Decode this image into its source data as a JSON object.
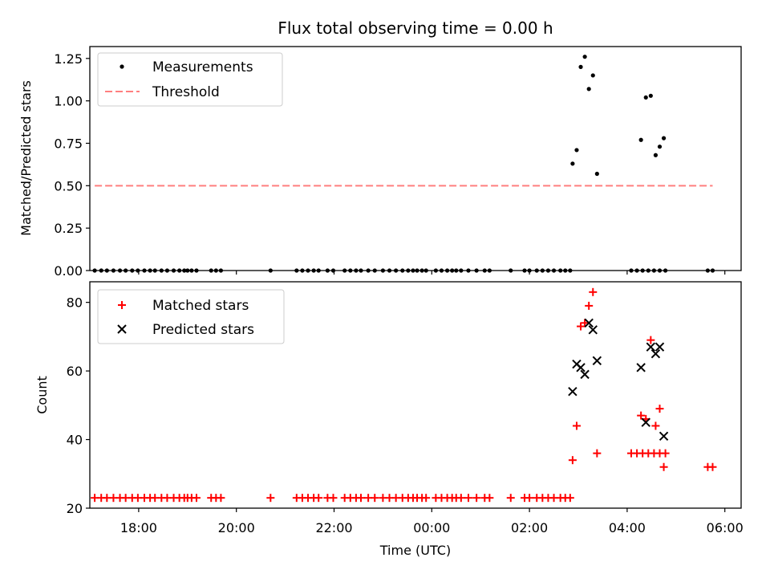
{
  "chart_data": [
    {
      "type": "scatter",
      "title": "Flux total observing time = 0.00 h",
      "xlabel": "",
      "ylabel": "Matched/Predicted stars",
      "xlim": [
        "17:00",
        "30:20"
      ],
      "ylim": [
        0,
        1.32
      ],
      "yticks": [
        "0.00",
        "0.25",
        "0.50",
        "0.75",
        "1.00",
        "1.25"
      ],
      "grid": false,
      "legend_position": "top-left",
      "legend": [
        "Measurements",
        "Threshold"
      ],
      "colors": {
        "measurements": "#000000",
        "threshold": "#ff7f7f"
      },
      "series": [
        {
          "name": "Measurements",
          "marker": "dot",
          "points": [
            [
              "17:06",
              0
            ],
            [
              "17:14",
              0
            ],
            [
              "17:21",
              0
            ],
            [
              "17:29",
              0
            ],
            [
              "17:37",
              0
            ],
            [
              "17:44",
              0
            ],
            [
              "17:52",
              0
            ],
            [
              "17:59",
              0
            ],
            [
              "18:07",
              0
            ],
            [
              "18:14",
              0
            ],
            [
              "18:20",
              0
            ],
            [
              "18:28",
              0
            ],
            [
              "18:35",
              0
            ],
            [
              "18:43",
              0
            ],
            [
              "18:50",
              0
            ],
            [
              "18:56",
              0
            ],
            [
              "19:00",
              0
            ],
            [
              "19:05",
              0
            ],
            [
              "19:11",
              0
            ],
            [
              "19:29",
              0
            ],
            [
              "19:35",
              0
            ],
            [
              "19:41",
              0
            ],
            [
              "20:42",
              0
            ],
            [
              "21:14",
              0
            ],
            [
              "21:21",
              0
            ],
            [
              "21:28",
              0
            ],
            [
              "21:35",
              0
            ],
            [
              "21:41",
              0
            ],
            [
              "21:52",
              0
            ],
            [
              "21:59",
              0
            ],
            [
              "22:13",
              0
            ],
            [
              "22:20",
              0
            ],
            [
              "22:27",
              0
            ],
            [
              "22:33",
              0
            ],
            [
              "22:42",
              0
            ],
            [
              "22:50",
              0
            ],
            [
              "23:00",
              0
            ],
            [
              "23:08",
              0
            ],
            [
              "23:16",
              0
            ],
            [
              "23:24",
              0
            ],
            [
              "23:31",
              0
            ],
            [
              "23:37",
              0
            ],
            [
              "23:42",
              0
            ],
            [
              "23:48",
              0
            ],
            [
              "23:53",
              0
            ],
            [
              "24:05",
              0
            ],
            [
              "24:12",
              0
            ],
            [
              "24:19",
              0
            ],
            [
              "24:25",
              0
            ],
            [
              "24:30",
              0
            ],
            [
              "24:36",
              0
            ],
            [
              "24:45",
              0
            ],
            [
              "24:55",
              0
            ],
            [
              "25:05",
              0
            ],
            [
              "25:11",
              0
            ],
            [
              "25:37",
              0
            ],
            [
              "25:54",
              0
            ],
            [
              "26:00",
              0
            ],
            [
              "26:09",
              0
            ],
            [
              "26:16",
              0
            ],
            [
              "26:23",
              0
            ],
            [
              "26:30",
              0
            ],
            [
              "26:38",
              0
            ],
            [
              "26:44",
              0
            ],
            [
              "26:50",
              0
            ],
            [
              "28:05",
              0
            ],
            [
              "28:12",
              0
            ],
            [
              "28:19",
              0
            ],
            [
              "28:26",
              0
            ],
            [
              "28:33",
              0
            ],
            [
              "28:40",
              0
            ],
            [
              "28:47",
              0
            ],
            [
              "29:39",
              0
            ],
            [
              "29:45",
              0
            ],
            [
              "26:53",
              0.63
            ],
            [
              "26:58",
              0.71
            ],
            [
              "27:03",
              1.2
            ],
            [
              "27:08",
              1.26
            ],
            [
              "27:13",
              1.07
            ],
            [
              "27:18",
              1.15
            ],
            [
              "27:23",
              0.57
            ],
            [
              "28:17",
              0.77
            ],
            [
              "28:23",
              1.02
            ],
            [
              "28:29",
              1.03
            ],
            [
              "28:35",
              0.68
            ],
            [
              "28:40",
              0.73
            ],
            [
              "28:45",
              0.78
            ]
          ]
        },
        {
          "name": "Threshold",
          "marker": "dashed-line",
          "points": [
            [
              "17:06",
              0.5
            ],
            [
              "29:45",
              0.5
            ]
          ]
        }
      ]
    },
    {
      "type": "scatter",
      "title": "",
      "xlabel": "Time (UTC)",
      "ylabel": "Count",
      "xlim": [
        "17:00",
        "30:20"
      ],
      "xticks": [
        "18:00",
        "20:00",
        "22:00",
        "00:00",
        "02:00",
        "04:00",
        "06:00"
      ],
      "ylim": [
        20,
        86
      ],
      "yticks": [
        "20",
        "40",
        "60",
        "80"
      ],
      "grid": false,
      "legend_position": "top-left",
      "legend": [
        "Matched stars",
        "Predicted stars"
      ],
      "colors": {
        "matched": "#ff0000",
        "predicted": "#000000"
      },
      "series": [
        {
          "name": "Matched stars",
          "marker": "plus",
          "points": [
            [
              "17:06",
              23
            ],
            [
              "17:14",
              23
            ],
            [
              "17:21",
              23
            ],
            [
              "17:29",
              23
            ],
            [
              "17:37",
              23
            ],
            [
              "17:44",
              23
            ],
            [
              "17:52",
              23
            ],
            [
              "17:59",
              23
            ],
            [
              "18:07",
              23
            ],
            [
              "18:14",
              23
            ],
            [
              "18:20",
              23
            ],
            [
              "18:28",
              23
            ],
            [
              "18:35",
              23
            ],
            [
              "18:43",
              23
            ],
            [
              "18:50",
              23
            ],
            [
              "18:56",
              23
            ],
            [
              "19:00",
              23
            ],
            [
              "19:05",
              23
            ],
            [
              "19:11",
              23
            ],
            [
              "19:29",
              23
            ],
            [
              "19:35",
              23
            ],
            [
              "19:41",
              23
            ],
            [
              "20:42",
              23
            ],
            [
              "21:14",
              23
            ],
            [
              "21:21",
              23
            ],
            [
              "21:28",
              23
            ],
            [
              "21:35",
              23
            ],
            [
              "21:41",
              23
            ],
            [
              "21:52",
              23
            ],
            [
              "21:59",
              23
            ],
            [
              "22:13",
              23
            ],
            [
              "22:20",
              23
            ],
            [
              "22:27",
              23
            ],
            [
              "22:33",
              23
            ],
            [
              "22:42",
              23
            ],
            [
              "22:50",
              23
            ],
            [
              "23:00",
              23
            ],
            [
              "23:08",
              23
            ],
            [
              "23:16",
              23
            ],
            [
              "23:24",
              23
            ],
            [
              "23:31",
              23
            ],
            [
              "23:37",
              23
            ],
            [
              "23:42",
              23
            ],
            [
              "23:48",
              23
            ],
            [
              "23:53",
              23
            ],
            [
              "24:05",
              23
            ],
            [
              "24:12",
              23
            ],
            [
              "24:19",
              23
            ],
            [
              "24:25",
              23
            ],
            [
              "24:30",
              23
            ],
            [
              "24:36",
              23
            ],
            [
              "24:45",
              23
            ],
            [
              "24:55",
              23
            ],
            [
              "25:05",
              23
            ],
            [
              "25:11",
              23
            ],
            [
              "25:37",
              23
            ],
            [
              "25:54",
              23
            ],
            [
              "26:00",
              23
            ],
            [
              "26:09",
              23
            ],
            [
              "26:16",
              23
            ],
            [
              "26:23",
              23
            ],
            [
              "26:30",
              23
            ],
            [
              "26:38",
              23
            ],
            [
              "26:44",
              23
            ],
            [
              "26:50",
              23
            ],
            [
              "26:53",
              34
            ],
            [
              "26:58",
              44
            ],
            [
              "27:03",
              73
            ],
            [
              "27:08",
              74
            ],
            [
              "27:13",
              79
            ],
            [
              "27:18",
              83
            ],
            [
              "27:23",
              36
            ],
            [
              "28:05",
              36
            ],
            [
              "28:12",
              36
            ],
            [
              "28:19",
              36
            ],
            [
              "28:26",
              36
            ],
            [
              "28:33",
              36
            ],
            [
              "28:40",
              36
            ],
            [
              "28:47",
              36
            ],
            [
              "28:17",
              47
            ],
            [
              "28:23",
              46
            ],
            [
              "28:29",
              69
            ],
            [
              "28:35",
              44
            ],
            [
              "28:40",
              49
            ],
            [
              "28:45",
              32
            ],
            [
              "29:39",
              32
            ],
            [
              "29:45",
              32
            ]
          ]
        },
        {
          "name": "Predicted stars",
          "marker": "x",
          "points": [
            [
              "26:53",
              54
            ],
            [
              "26:58",
              62
            ],
            [
              "27:03",
              61
            ],
            [
              "27:08",
              59
            ],
            [
              "27:13",
              74
            ],
            [
              "27:18",
              72
            ],
            [
              "27:23",
              63
            ],
            [
              "28:17",
              61
            ],
            [
              "28:23",
              45
            ],
            [
              "28:29",
              67
            ],
            [
              "28:35",
              65
            ],
            [
              "28:40",
              67
            ],
            [
              "28:45",
              41
            ]
          ]
        }
      ]
    }
  ]
}
